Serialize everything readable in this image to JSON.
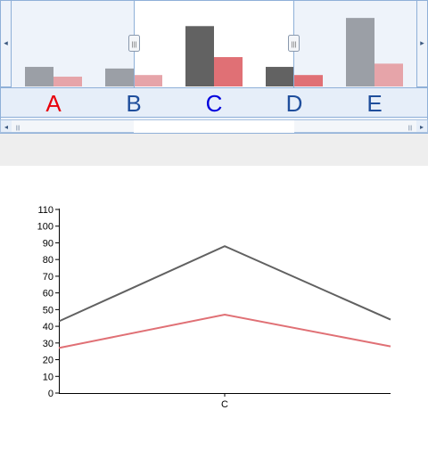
{
  "navigator": {
    "categories": [
      "A",
      "B",
      "C",
      "D",
      "E"
    ],
    "category_colors": [
      "#e8000b",
      "#1f4e9c",
      "#0000dd",
      "#1f4e9c",
      "#1f4e9c"
    ],
    "series": [
      {
        "values": [
          12,
          11,
          37,
          12,
          42
        ],
        "color": "#9b9fa6",
        "selected_color": "#626262"
      },
      {
        "values": [
          6,
          7,
          18,
          7,
          14
        ],
        "color": "#e6a4a9",
        "selected_color": "#e07075"
      }
    ],
    "selected_range": [
      "C",
      "D"
    ],
    "left_arrow": "◂",
    "right_arrow": "▸",
    "thumb_grip": "|||"
  },
  "chart_data": {
    "type": "line",
    "x_visible": [
      -0.5,
      0.5
    ],
    "categories": [
      "C"
    ],
    "ylim": [
      0,
      110
    ],
    "yticks": [
      "0",
      "10",
      "20",
      "30",
      "40",
      "50",
      "60",
      "70",
      "80",
      "90",
      "100",
      "110"
    ],
    "series": [
      {
        "points": [
          [
            -0.5,
            43
          ],
          [
            0,
            88
          ],
          [
            0.5,
            44
          ]
        ],
        "color": "#616161"
      },
      {
        "points": [
          [
            -0.5,
            27
          ],
          [
            0,
            47
          ],
          [
            0.5,
            28
          ]
        ],
        "color": "#e07075"
      }
    ]
  }
}
